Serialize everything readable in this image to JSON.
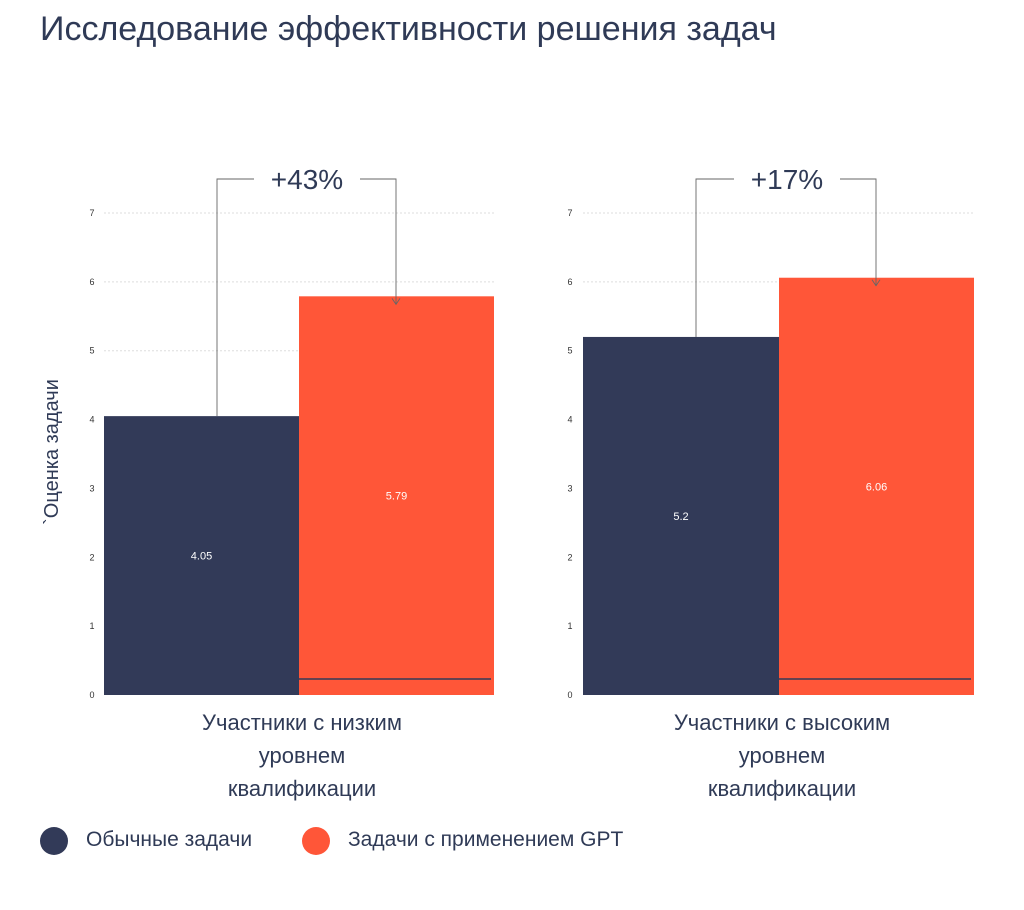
{
  "title": "Исследование эффективности решения задач",
  "colors": {
    "normal": "#323a58",
    "gpt": "#ff5638",
    "text": "#2f3a56",
    "grid": "#dddddd"
  },
  "legend": [
    {
      "label": "Обычные задачи",
      "color": "#323a58"
    },
    {
      "label": "Задачи с применением GPT",
      "color": "#ff5638"
    }
  ],
  "chart_data": {
    "type": "bar",
    "ylabel": "`Оценка задачи",
    "ylim": [
      0,
      7
    ],
    "yticks": [
      "0",
      "1",
      "2",
      "3",
      "4",
      "5",
      "6",
      "7"
    ],
    "grid": true,
    "legend_position": "bottom-left",
    "series": [
      {
        "name": "Обычные задачи",
        "values": [
          4.05,
          5.2
        ]
      },
      {
        "name": "Задачи с применением GPT",
        "values": [
          5.79,
          6.06
        ]
      }
    ],
    "panels": [
      {
        "category": "Участники с низким уровнем квалификации",
        "category_lines": [
          "Участники с низким",
          "уровнем",
          "квалификации"
        ],
        "labels": [
          "4.05",
          "5.79"
        ],
        "delta": "+43%"
      },
      {
        "category": "Участники с высоким уровнем квалификации",
        "category_lines": [
          "Участники с высоким",
          "уровнем",
          "квалификации"
        ],
        "labels": [
          "5.2",
          "6.06"
        ],
        "delta": "+17%"
      }
    ]
  }
}
